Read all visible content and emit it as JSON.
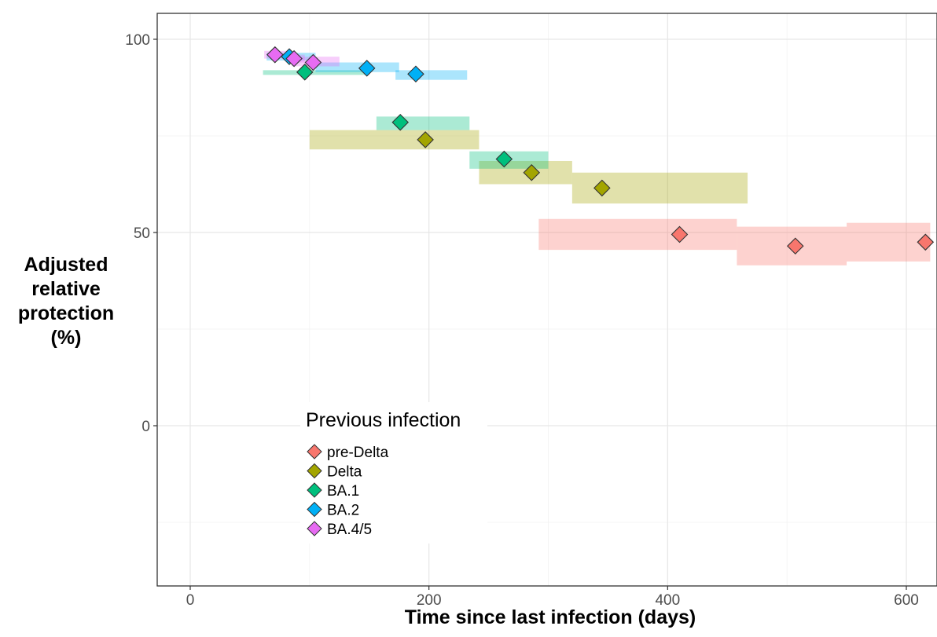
{
  "chart_data": {
    "type": "scatter",
    "xlabel": "Time since last infection (days)",
    "ylabel": "Adjusted\nrelative\nprotection\n(%)",
    "xlim": [
      -40,
      620
    ],
    "ylim": [
      -42,
      106
    ],
    "x_ticks": [
      0,
      200,
      400,
      600
    ],
    "x_tick_labels": [
      "0",
      "200",
      "400",
      "600"
    ],
    "y_ticks": [
      0,
      50,
      100
    ],
    "y_tick_labels": [
      "0",
      "50",
      "100"
    ],
    "grid": true,
    "legend": {
      "title": "Previous infection",
      "position": "bottom-left"
    },
    "series": [
      {
        "name": "pre-Delta",
        "color": "#F8766D",
        "points": [
          {
            "x": 410,
            "y": 49.5,
            "x_range": [
              292,
              458
            ],
            "y_range": [
              45.5,
              53.5
            ]
          },
          {
            "x": 507,
            "y": 46.5,
            "x_range": [
              458,
              550
            ],
            "y_range": [
              41.5,
              51.5
            ]
          },
          {
            "x": 616,
            "y": 47.5,
            "x_range": [
              550,
              620
            ],
            "y_range": [
              42.5,
              52.5
            ]
          }
        ]
      },
      {
        "name": "Delta",
        "color": "#A3A500",
        "points": [
          {
            "x": 197,
            "y": 74,
            "x_range": [
              100,
              242
            ],
            "y_range": [
              71.5,
              76.5
            ]
          },
          {
            "x": 286,
            "y": 65.5,
            "x_range": [
              242,
              320
            ],
            "y_range": [
              62.5,
              68.5
            ]
          },
          {
            "x": 345,
            "y": 61.5,
            "x_range": [
              320,
              467
            ],
            "y_range": [
              57.5,
              65.5
            ]
          }
        ]
      },
      {
        "name": "BA.1",
        "color": "#00BF7D",
        "points": [
          {
            "x": 96,
            "y": 91.5,
            "x_range": [
              61,
              150
            ],
            "y_range": [
              91,
              92
            ]
          },
          {
            "x": 176,
            "y": 78.5,
            "x_range": [
              156,
              234
            ],
            "y_range": [
              76.5,
              80.0
            ]
          },
          {
            "x": 263,
            "y": 69,
            "x_range": [
              234,
              300
            ],
            "y_range": [
              66.5,
              71.0
            ]
          }
        ]
      },
      {
        "name": "BA.2",
        "color": "#00B0F6",
        "points": [
          {
            "x": 83,
            "y": 95.5,
            "x_range": [
              64,
              105
            ],
            "y_range": [
              94.5,
              96.5
            ]
          },
          {
            "x": 148,
            "y": 92.5,
            "x_range": [
              105,
              175
            ],
            "y_range": [
              91.5,
              94.0
            ]
          },
          {
            "x": 189,
            "y": 91,
            "x_range": [
              172,
              232
            ],
            "y_range": [
              89.5,
              92.0
            ]
          }
        ]
      },
      {
        "name": "BA.4/5",
        "color": "#E76BF3",
        "points": [
          {
            "x": 71,
            "y": 96,
            "x_range": [
              62,
              82
            ],
            "y_range": [
              95.0,
              97.0
            ]
          },
          {
            "x": 87,
            "y": 95,
            "x_range": [
              80,
              96
            ],
            "y_range": [
              94.0,
              96.0
            ]
          },
          {
            "x": 103,
            "y": 94,
            "x_range": [
              85,
              125
            ],
            "y_range": [
              93.0,
              95.5
            ]
          }
        ]
      }
    ]
  }
}
